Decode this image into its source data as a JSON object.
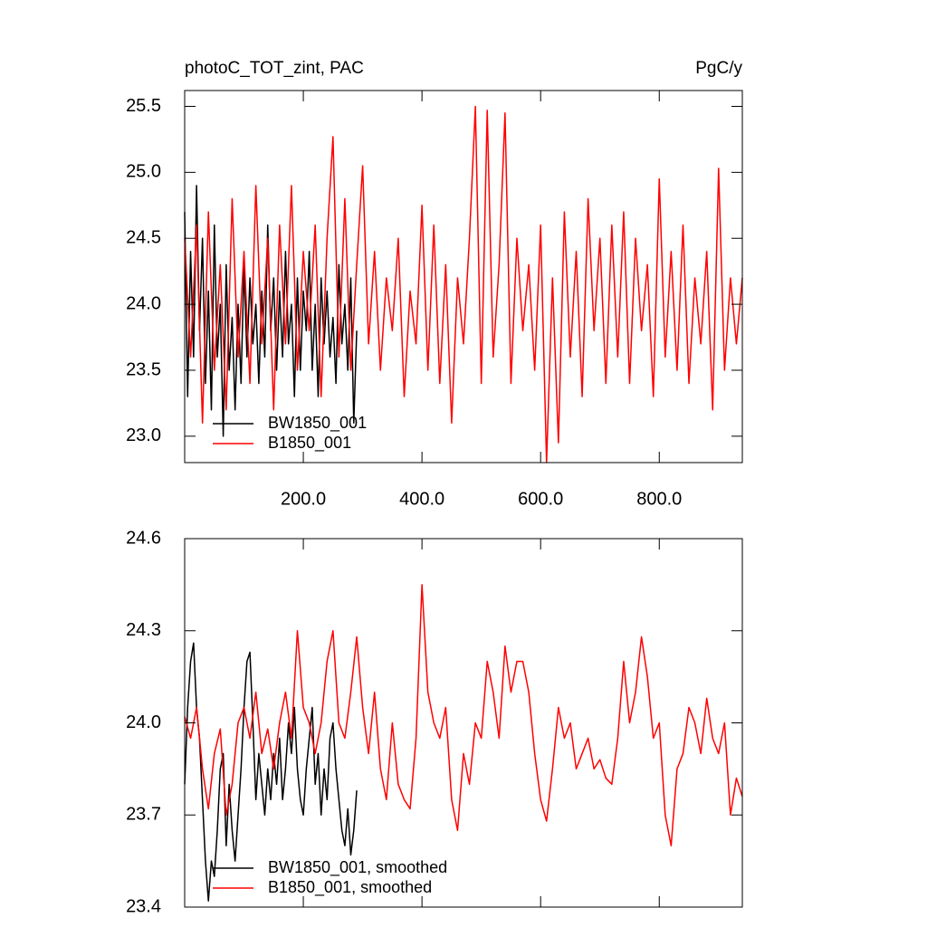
{
  "chart_data": [
    {
      "type": "line",
      "title": "photoC_TOT_zint, PAC",
      "units": "PgC/y",
      "xlim": [
        0,
        940
      ],
      "ylim": [
        22.8,
        25.62
      ],
      "xticks": [
        {
          "value": 200,
          "label": "200.0"
        },
        {
          "value": 400,
          "label": "400.0"
        },
        {
          "value": 600,
          "label": "600.0"
        },
        {
          "value": 800,
          "label": "800.0"
        }
      ],
      "yticks": [
        {
          "value": 23,
          "label": "23.0"
        },
        23.5,
        {
          "value": 24,
          "label": "24.0"
        },
        24.5,
        {
          "value": 25,
          "label": "25.0"
        },
        25.5
      ],
      "legend": "lower left",
      "series": [
        {
          "name": "BW1850_001",
          "color": "#000000",
          "x": [
            0,
            5,
            10,
            15,
            20,
            25,
            30,
            35,
            40,
            45,
            50,
            55,
            60,
            65,
            70,
            75,
            80,
            85,
            90,
            95,
            100,
            105,
            110,
            115,
            120,
            125,
            130,
            135,
            140,
            145,
            150,
            155,
            160,
            165,
            170,
            175,
            180,
            185,
            190,
            195,
            200,
            205,
            210,
            215,
            220,
            225,
            230,
            235,
            240,
            245,
            250,
            255,
            260,
            265,
            270,
            275,
            280,
            285,
            290
          ],
          "values": [
            24.7,
            23.3,
            24.4,
            23.6,
            24.9,
            23.8,
            24.5,
            23.4,
            24.1,
            23.2,
            24.6,
            23.6,
            24.0,
            23.0,
            24.3,
            23.5,
            23.9,
            23.2,
            24.0,
            23.4,
            24.3,
            23.6,
            24.2,
            23.7,
            24.0,
            23.4,
            24.1,
            23.6,
            24.6,
            23.8,
            24.2,
            23.5,
            24.1,
            23.6,
            24.4,
            23.7,
            24.0,
            23.3,
            24.2,
            23.5,
            24.1,
            23.8,
            24.4,
            23.5,
            24.0,
            23.3,
            24.2,
            23.7,
            24.1,
            23.6,
            23.9,
            23.4,
            24.3,
            23.7,
            24.0,
            23.5,
            24.2,
            23.1,
            23.8
          ]
        },
        {
          "name": "B1850_001",
          "color": "#ff0000",
          "x": [
            0,
            10,
            20,
            30,
            40,
            50,
            60,
            70,
            80,
            90,
            100,
            110,
            120,
            130,
            140,
            150,
            160,
            170,
            180,
            190,
            200,
            210,
            220,
            230,
            240,
            250,
            260,
            270,
            280,
            290,
            300,
            310,
            320,
            330,
            340,
            350,
            360,
            370,
            380,
            390,
            400,
            410,
            420,
            430,
            440,
            450,
            460,
            470,
            480,
            490,
            500,
            510,
            520,
            530,
            540,
            550,
            560,
            570,
            580,
            590,
            600,
            610,
            620,
            630,
            640,
            650,
            660,
            670,
            680,
            690,
            700,
            710,
            720,
            730,
            740,
            750,
            760,
            770,
            780,
            790,
            800,
            810,
            820,
            830,
            840,
            850,
            860,
            870,
            880,
            890,
            900,
            910,
            920,
            930,
            940
          ],
          "values": [
            24.5,
            23.6,
            24.6,
            23.1,
            24.7,
            23.5,
            24.3,
            23.2,
            24.8,
            23.6,
            24.4,
            23.4,
            24.9,
            23.7,
            24.5,
            23.2,
            24.6,
            23.7,
            24.9,
            23.5,
            24.4,
            23.8,
            24.6,
            23.3,
            24.5,
            25.27,
            23.6,
            24.8,
            23.5,
            24.3,
            25.05,
            23.7,
            24.4,
            23.5,
            24.2,
            23.8,
            24.5,
            23.3,
            24.1,
            23.7,
            24.75,
            23.5,
            24.6,
            23.4,
            24.3,
            23.1,
            24.2,
            23.7,
            24.5,
            25.5,
            23.4,
            25.47,
            23.6,
            24.3,
            25.45,
            23.4,
            24.5,
            23.8,
            24.3,
            23.5,
            24.6,
            22.8,
            24.2,
            22.95,
            24.7,
            23.6,
            24.4,
            23.3,
            24.8,
            23.8,
            24.5,
            23.4,
            24.6,
            23.6,
            24.7,
            23.4,
            24.5,
            23.8,
            24.3,
            23.3,
            24.95,
            23.6,
            24.4,
            23.5,
            24.6,
            23.4,
            24.2,
            23.7,
            24.4,
            23.2,
            25.03,
            23.5,
            24.2,
            23.7,
            24.2
          ]
        }
      ]
    },
    {
      "type": "line",
      "xlim": [
        0,
        940
      ],
      "ylim": [
        23.4,
        24.6
      ],
      "yticks": [
        23.4,
        23.7,
        {
          "value": 24,
          "label": "24.0"
        },
        24.3,
        24.6
      ],
      "legend": "lower left",
      "series": [
        {
          "name": "BW1850_001, smoothed",
          "color": "#000000",
          "x": [
            0,
            5,
            10,
            15,
            20,
            25,
            30,
            35,
            40,
            45,
            50,
            55,
            60,
            65,
            70,
            75,
            80,
            85,
            90,
            95,
            100,
            105,
            110,
            115,
            120,
            125,
            130,
            135,
            140,
            145,
            150,
            155,
            160,
            165,
            170,
            175,
            180,
            185,
            190,
            195,
            200,
            205,
            210,
            215,
            220,
            225,
            230,
            235,
            240,
            245,
            250,
            255,
            260,
            265,
            270,
            275,
            280,
            285,
            290
          ],
          "values": [
            23.8,
            24.05,
            24.2,
            24.26,
            24.05,
            23.95,
            23.75,
            23.55,
            23.42,
            23.55,
            23.5,
            23.65,
            23.85,
            23.9,
            23.6,
            23.8,
            23.65,
            23.55,
            23.7,
            23.85,
            24.05,
            24.2,
            24.23,
            24.0,
            23.75,
            23.9,
            23.8,
            23.7,
            23.85,
            23.75,
            23.9,
            23.8,
            23.95,
            23.75,
            23.85,
            24.0,
            23.9,
            24.05,
            23.85,
            23.75,
            23.7,
            23.85,
            23.95,
            24.05,
            23.8,
            23.9,
            23.7,
            23.85,
            23.75,
            23.95,
            24.0,
            23.85,
            23.75,
            23.65,
            23.6,
            23.72,
            23.57,
            23.65,
            23.78
          ]
        },
        {
          "name": "B1850_001, smoothed",
          "color": "#ff0000",
          "x": [
            0,
            10,
            20,
            30,
            40,
            50,
            60,
            70,
            80,
            90,
            100,
            110,
            120,
            130,
            140,
            150,
            160,
            170,
            180,
            190,
            200,
            210,
            220,
            230,
            240,
            250,
            260,
            270,
            280,
            290,
            300,
            310,
            320,
            330,
            340,
            350,
            360,
            370,
            380,
            390,
            400,
            410,
            420,
            430,
            440,
            450,
            460,
            470,
            480,
            490,
            500,
            510,
            520,
            530,
            540,
            550,
            560,
            570,
            580,
            590,
            600,
            610,
            620,
            630,
            640,
            650,
            660,
            670,
            680,
            690,
            700,
            710,
            720,
            730,
            740,
            750,
            760,
            770,
            780,
            790,
            800,
            810,
            820,
            830,
            840,
            850,
            860,
            870,
            880,
            890,
            900,
            910,
            920,
            930,
            940
          ],
          "values": [
            24.02,
            23.95,
            24.05,
            23.85,
            23.72,
            23.9,
            23.98,
            23.7,
            23.8,
            24.0,
            24.05,
            23.95,
            24.1,
            23.9,
            23.98,
            23.85,
            24.0,
            24.1,
            23.95,
            24.3,
            24.05,
            24.0,
            23.9,
            24.0,
            24.2,
            24.3,
            24.0,
            23.95,
            24.1,
            24.28,
            24.05,
            23.9,
            24.1,
            23.85,
            23.75,
            24.0,
            23.8,
            23.75,
            23.72,
            23.95,
            24.45,
            24.1,
            24.0,
            23.95,
            24.05,
            23.75,
            23.65,
            23.9,
            23.8,
            24.0,
            23.95,
            24.2,
            24.1,
            23.95,
            24.25,
            24.1,
            24.2,
            24.2,
            24.1,
            23.9,
            23.75,
            23.68,
            23.85,
            24.05,
            23.95,
            24.0,
            23.85,
            23.9,
            23.95,
            23.85,
            23.88,
            23.82,
            23.8,
            23.95,
            24.2,
            24.0,
            24.1,
            24.28,
            24.15,
            23.95,
            24.0,
            23.7,
            23.6,
            23.85,
            23.9,
            24.05,
            24.0,
            23.9,
            24.08,
            23.95,
            23.9,
            24.0,
            23.7,
            23.82,
            23.76
          ]
        }
      ]
    }
  ]
}
